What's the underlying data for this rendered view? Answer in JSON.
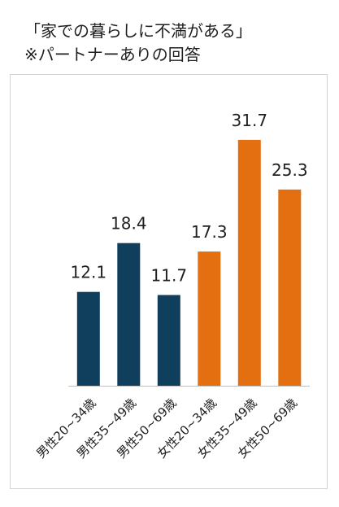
{
  "title_lines": [
    "「家での暮らしに不満がある」",
    "※パートナーありの回答"
  ],
  "colors": {
    "male": "#0f3f5c",
    "female": "#e46f10",
    "axis": "#bfbfbf",
    "text": "#1f1f1f"
  },
  "chart_data": {
    "type": "bar",
    "title": "「家での暮らしに不満がある」",
    "subtitle": "※パートナーありの回答",
    "categories": [
      "男性20~34歳",
      "男性35~49歳",
      "男性50~69歳",
      "女性20~34歳",
      "女性35~49歳",
      "女性50~69歳"
    ],
    "values": [
      12.1,
      18.4,
      11.7,
      17.3,
      31.7,
      25.3
    ],
    "value_labels": [
      "12.1",
      "18.4",
      "11.7",
      "17.3",
      "31.7",
      "25.3"
    ],
    "bar_groups": [
      "male",
      "male",
      "male",
      "female",
      "female",
      "female"
    ],
    "ylim": [
      0,
      34
    ],
    "grid": false,
    "legend": "none",
    "xlabel": "",
    "ylabel": ""
  }
}
